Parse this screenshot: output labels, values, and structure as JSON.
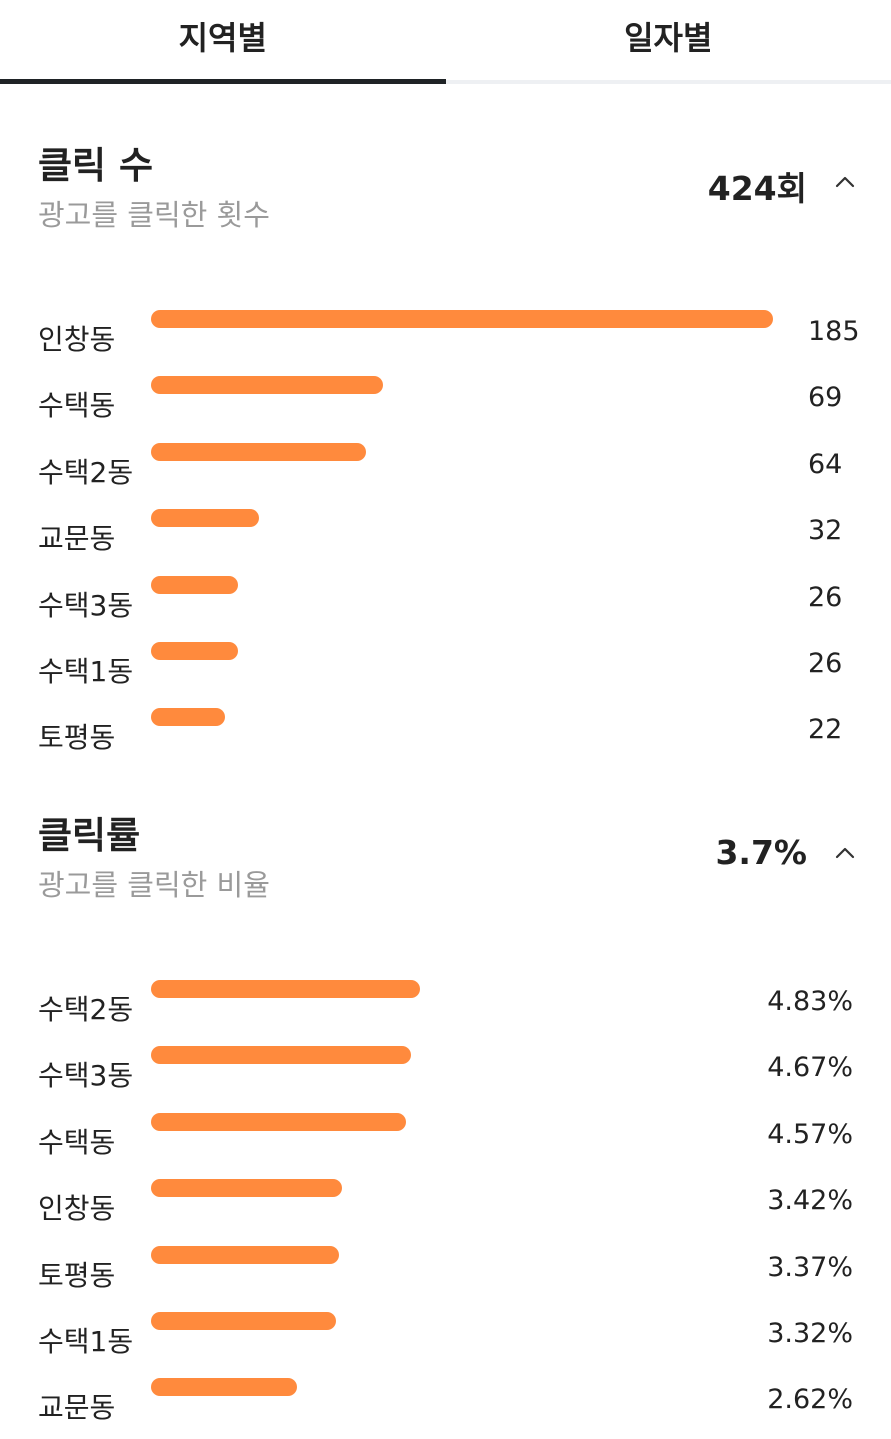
{
  "tabs": [
    {
      "label": "지역별",
      "active": true
    },
    {
      "label": "일자별",
      "active": false
    }
  ],
  "clicks": {
    "title": "클릭 수",
    "subtitle": "광고를 클릭한 횟수",
    "total": "424회",
    "max": 185,
    "items": [
      {
        "label": "인창동",
        "value": 185,
        "value_text": "185"
      },
      {
        "label": "수택동",
        "value": 69,
        "value_text": "69"
      },
      {
        "label": "수택2동",
        "value": 64,
        "value_text": "64"
      },
      {
        "label": "교문동",
        "value": 32,
        "value_text": "32"
      },
      {
        "label": "수택3동",
        "value": 26,
        "value_text": "26"
      },
      {
        "label": "수택1동",
        "value": 26,
        "value_text": "26"
      },
      {
        "label": "토평동",
        "value": 22,
        "value_text": "22"
      }
    ]
  },
  "ctr": {
    "title": "클릭률",
    "subtitle": "광고를 클릭한 비율",
    "total": "3.7%",
    "bar_scale_max": 11.16,
    "items": [
      {
        "label": "수택2동",
        "value": 4.83,
        "value_text": "4.83%"
      },
      {
        "label": "수택3동",
        "value": 4.67,
        "value_text": "4.67%"
      },
      {
        "label": "수택동",
        "value": 4.57,
        "value_text": "4.57%"
      },
      {
        "label": "인창동",
        "value": 3.42,
        "value_text": "3.42%"
      },
      {
        "label": "토평동",
        "value": 3.37,
        "value_text": "3.37%"
      },
      {
        "label": "수택1동",
        "value": 3.32,
        "value_text": "3.32%"
      },
      {
        "label": "교문동",
        "value": 2.62,
        "value_text": "2.62%"
      }
    ]
  },
  "colors": {
    "bar": "#ff8a3d",
    "active_tab_underline": "#1f2326",
    "subtitle": "#9a9a9a"
  },
  "icons": {
    "collapse": "chevron-up-icon"
  }
}
